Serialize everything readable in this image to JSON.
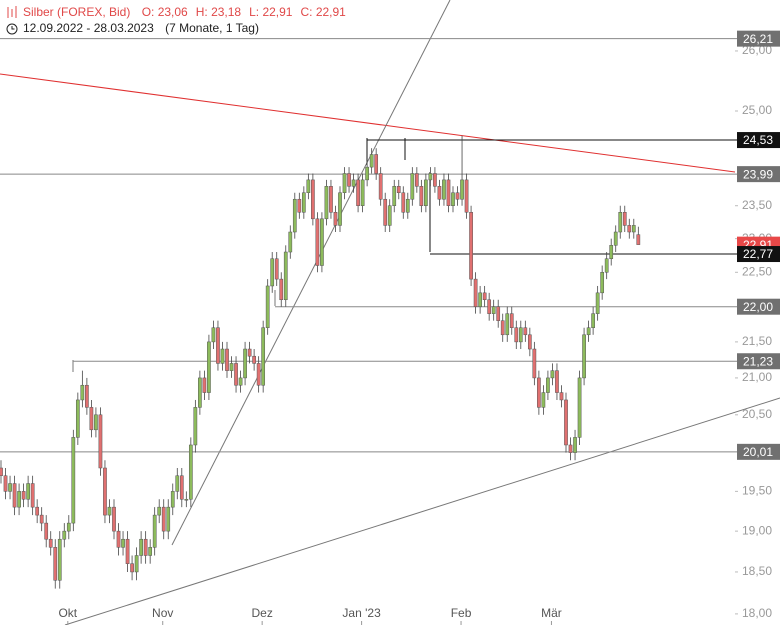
{
  "chart_data": {
    "type": "candlestick",
    "title": "Silber (FOREX, Bid)",
    "header_values": [
      "O: 23,06",
      "H: 23,18",
      "L: 22,91",
      "C: 22,91"
    ],
    "period": "12.09.2022 - 28.03.2023",
    "span": "(7 Monate, 1 Tag)",
    "log_scale": true,
    "up_color": "#8dbb5c",
    "down_color": "#e07070",
    "ylim": [
      17.87,
      26.88
    ],
    "yticks": [
      {
        "value": 18,
        "label": "18,00"
      },
      {
        "value": 18.5,
        "label": "18,50"
      },
      {
        "value": 19,
        "label": "19,00"
      },
      {
        "value": 19.5,
        "label": "19,50"
      },
      {
        "value": 20.5,
        "label": "20,50"
      },
      {
        "value": 21,
        "label": "21,00"
      },
      {
        "value": 21.5,
        "label": "21,50"
      },
      {
        "value": 22.5,
        "label": "22,50"
      },
      {
        "value": 23,
        "label": "23,00"
      },
      {
        "value": 23.5,
        "label": "23,50"
      },
      {
        "value": 25,
        "label": "25,00"
      },
      {
        "value": 26,
        "label": "26,00"
      }
    ],
    "levels": [
      {
        "value": 26.21,
        "label": "26,21",
        "color": "#707070"
      },
      {
        "value": 24.53,
        "label": "24,53",
        "color": "#111111"
      },
      {
        "value": 23.99,
        "label": "23,99",
        "color": "#707070"
      },
      {
        "value": 22.77,
        "label": "22,77",
        "color": "#111111"
      },
      {
        "value": 22.0,
        "label": "22,00",
        "color": "#707070"
      },
      {
        "value": 21.23,
        "label": "21,23",
        "color": "#707070"
      },
      {
        "value": 20.01,
        "label": "20,01",
        "color": "#707070"
      }
    ],
    "last_label": {
      "value": 22.91,
      "label": "22,91",
      "color": "#e84848"
    },
    "categories": [
      null,
      null,
      null,
      null,
      null,
      null,
      null,
      null,
      null,
      null,
      null,
      null,
      null,
      null,
      null,
      "Okt",
      null,
      null,
      null,
      null,
      null,
      null,
      null,
      null,
      null,
      null,
      null,
      null,
      null,
      null,
      null,
      null,
      null,
      null,
      null,
      null,
      "Nov",
      null,
      null,
      null,
      null,
      null,
      null,
      null,
      null,
      null,
      null,
      null,
      null,
      null,
      null,
      null,
      null,
      null,
      null,
      null,
      null,
      null,
      "Dez",
      null,
      null,
      null,
      null,
      null,
      null,
      null,
      null,
      null,
      null,
      null,
      null,
      null,
      null,
      null,
      null,
      null,
      null,
      null,
      null,
      null,
      "Jan '23",
      null,
      null,
      null,
      null,
      null,
      null,
      null,
      null,
      null,
      null,
      null,
      null,
      null,
      null,
      null,
      null,
      null,
      null,
      null,
      null,
      null,
      "Feb",
      null,
      null,
      null,
      null,
      null,
      null,
      null,
      null,
      null,
      null,
      null,
      null,
      null,
      null,
      null,
      null,
      null,
      null,
      null,
      "Mär",
      null,
      null,
      null,
      null,
      null,
      null,
      null,
      null,
      null,
      null,
      null,
      null,
      null,
      null,
      null,
      null,
      null,
      null,
      null
    ],
    "open": [
      19.8,
      19.7,
      19.5,
      19.6,
      19.3,
      19.5,
      19.4,
      19.6,
      19.3,
      19.2,
      19.1,
      18.9,
      18.8,
      18.4,
      18.9,
      19.0,
      19.1,
      20.2,
      20.7,
      20.9,
      20.6,
      20.3,
      20.5,
      19.8,
      19.2,
      19.3,
      19.0,
      18.8,
      18.9,
      18.6,
      18.5,
      18.7,
      18.9,
      18.7,
      18.8,
      19.2,
      19.3,
      19.0,
      19.3,
      19.5,
      19.7,
      19.4,
      19.4,
      20.1,
      20.6,
      21.0,
      20.8,
      21.5,
      21.7,
      21.2,
      21.4,
      21.1,
      21.2,
      20.9,
      21.0,
      21.4,
      21.3,
      21.2,
      20.9,
      21.7,
      22.3,
      22.7,
      22.4,
      22.1,
      22.8,
      23.1,
      23.6,
      23.4,
      23.7,
      23.9,
      23.3,
      22.6,
      23.3,
      23.8,
      23.4,
      23.2,
      23.7,
      24.0,
      23.8,
      23.9,
      23.5,
      23.9,
      24.1,
      24.3,
      24.0,
      23.6,
      23.2,
      23.5,
      23.8,
      23.7,
      23.4,
      23.6,
      24.0,
      23.8,
      23.5,
      23.9,
      24.0,
      23.8,
      23.6,
      23.9,
      23.5,
      23.7,
      23.6,
      23.9,
      23.4,
      22.4,
      22.0,
      22.2,
      22.1,
      21.9,
      22.0,
      21.8,
      21.6,
      21.9,
      21.7,
      21.5,
      21.7,
      21.6,
      21.4,
      21.0,
      20.6,
      20.8,
      21.0,
      21.1,
      20.8,
      20.7,
      20.1,
      20.0,
      20.2,
      21.0,
      21.6,
      21.7,
      21.9,
      22.2,
      22.5,
      22.7,
      22.9,
      23.1,
      23.4,
      23.2,
      23.1,
      23.06
    ],
    "high": [
      19.9,
      19.8,
      19.7,
      19.7,
      19.6,
      19.6,
      19.7,
      19.7,
      19.4,
      19.3,
      19.2,
      19.0,
      18.9,
      19.0,
      19.1,
      19.2,
      20.3,
      20.8,
      21.1,
      21.0,
      20.7,
      20.6,
      20.6,
      19.9,
      19.4,
      19.4,
      19.1,
      19.0,
      19.0,
      18.7,
      18.8,
      19.0,
      19.0,
      18.9,
      19.3,
      19.4,
      19.4,
      19.4,
      19.6,
      19.8,
      19.8,
      19.5,
      20.2,
      20.7,
      21.1,
      21.1,
      21.6,
      21.8,
      21.8,
      21.5,
      21.5,
      21.3,
      21.3,
      21.1,
      21.5,
      21.5,
      21.4,
      21.3,
      21.8,
      22.4,
      22.8,
      22.8,
      22.5,
      22.9,
      23.2,
      23.7,
      23.7,
      23.8,
      24.0,
      24.0,
      23.4,
      23.4,
      23.9,
      23.9,
      23.5,
      23.8,
      24.1,
      24.1,
      24.0,
      24.0,
      24.0,
      24.2,
      24.4,
      24.4,
      24.1,
      23.7,
      23.6,
      23.9,
      23.9,
      23.8,
      23.7,
      24.1,
      24.1,
      23.9,
      24.0,
      24.1,
      24.1,
      23.9,
      24.0,
      24.0,
      23.8,
      23.8,
      24.6,
      24.0,
      23.5,
      22.5,
      22.3,
      22.3,
      22.2,
      22.1,
      22.1,
      21.9,
      22.0,
      22.0,
      21.8,
      21.8,
      21.8,
      21.7,
      21.5,
      21.1,
      20.9,
      21.1,
      21.2,
      21.2,
      20.9,
      20.8,
      20.2,
      20.3,
      21.1,
      21.7,
      21.8,
      22.0,
      22.3,
      22.6,
      22.8,
      23.0,
      23.2,
      23.5,
      23.5,
      23.3,
      23.3,
      23.18
    ],
    "low": [
      19.6,
      19.4,
      19.4,
      19.2,
      19.2,
      19.3,
      19.3,
      19.2,
      19.1,
      19.0,
      18.8,
      18.7,
      18.3,
      18.3,
      18.8,
      18.9,
      19.0,
      20.1,
      20.6,
      20.5,
      20.2,
      20.2,
      19.7,
      19.1,
      19.1,
      18.9,
      18.7,
      18.7,
      18.5,
      18.4,
      18.4,
      18.6,
      18.6,
      18.6,
      18.7,
      19.1,
      18.9,
      18.9,
      19.2,
      19.4,
      19.3,
      19.3,
      19.3,
      20.0,
      20.5,
      20.7,
      20.7,
      21.4,
      21.1,
      21.1,
      21.0,
      21.0,
      20.8,
      20.8,
      20.9,
      21.2,
      21.1,
      20.8,
      20.8,
      21.6,
      22.2,
      22.3,
      22.0,
      22.0,
      22.7,
      23.0,
      23.3,
      23.3,
      23.6,
      23.2,
      22.5,
      22.5,
      23.2,
      23.3,
      23.1,
      23.1,
      23.6,
      23.7,
      23.7,
      23.4,
      23.4,
      23.8,
      24.0,
      23.9,
      23.5,
      23.1,
      23.1,
      23.4,
      23.6,
      23.3,
      23.3,
      23.5,
      23.7,
      23.4,
      23.4,
      23.8,
      23.7,
      23.5,
      23.5,
      23.4,
      23.4,
      23.5,
      23.5,
      23.3,
      22.3,
      21.9,
      21.9,
      22.0,
      21.8,
      21.8,
      21.7,
      21.5,
      21.5,
      21.6,
      21.4,
      21.4,
      21.5,
      21.3,
      20.9,
      20.5,
      20.5,
      20.7,
      20.9,
      20.7,
      20.6,
      20.0,
      19.9,
      19.9,
      20.1,
      20.9,
      21.5,
      21.6,
      21.8,
      22.1,
      22.4,
      22.6,
      22.8,
      23.0,
      23.1,
      23.0,
      23.0,
      22.91
    ],
    "close": [
      19.7,
      19.5,
      19.6,
      19.3,
      19.5,
      19.4,
      19.6,
      19.3,
      19.2,
      19.1,
      18.9,
      18.8,
      18.4,
      18.9,
      19.0,
      19.1,
      20.2,
      20.7,
      20.9,
      20.6,
      20.3,
      20.5,
      19.8,
      19.2,
      19.3,
      19.0,
      18.8,
      18.9,
      18.6,
      18.5,
      18.7,
      18.9,
      18.7,
      18.8,
      19.2,
      19.3,
      19.0,
      19.3,
      19.5,
      19.7,
      19.4,
      19.4,
      20.1,
      20.6,
      21.0,
      20.8,
      21.5,
      21.7,
      21.2,
      21.4,
      21.1,
      21.2,
      20.9,
      21.0,
      21.4,
      21.3,
      21.2,
      20.9,
      21.7,
      22.3,
      22.7,
      22.4,
      22.1,
      22.8,
      23.1,
      23.6,
      23.4,
      23.7,
      23.9,
      23.3,
      22.6,
      23.3,
      23.8,
      23.4,
      23.2,
      23.7,
      24.0,
      23.8,
      23.9,
      23.5,
      23.9,
      24.1,
      24.3,
      24.0,
      23.6,
      23.2,
      23.5,
      23.8,
      23.7,
      23.4,
      23.6,
      24.0,
      23.8,
      23.5,
      23.9,
      24.0,
      23.8,
      23.6,
      23.9,
      23.5,
      23.7,
      23.6,
      23.9,
      23.4,
      22.4,
      22.0,
      22.2,
      22.1,
      21.9,
      22.0,
      21.8,
      21.6,
      21.9,
      21.7,
      21.5,
      21.7,
      21.6,
      21.4,
      21.0,
      20.6,
      20.8,
      21.0,
      21.1,
      20.8,
      20.7,
      20.1,
      20.0,
      20.2,
      21.0,
      21.6,
      21.7,
      21.9,
      22.2,
      22.5,
      22.7,
      22.9,
      23.1,
      23.4,
      23.2,
      23.1,
      23.2,
      22.91
    ]
  }
}
